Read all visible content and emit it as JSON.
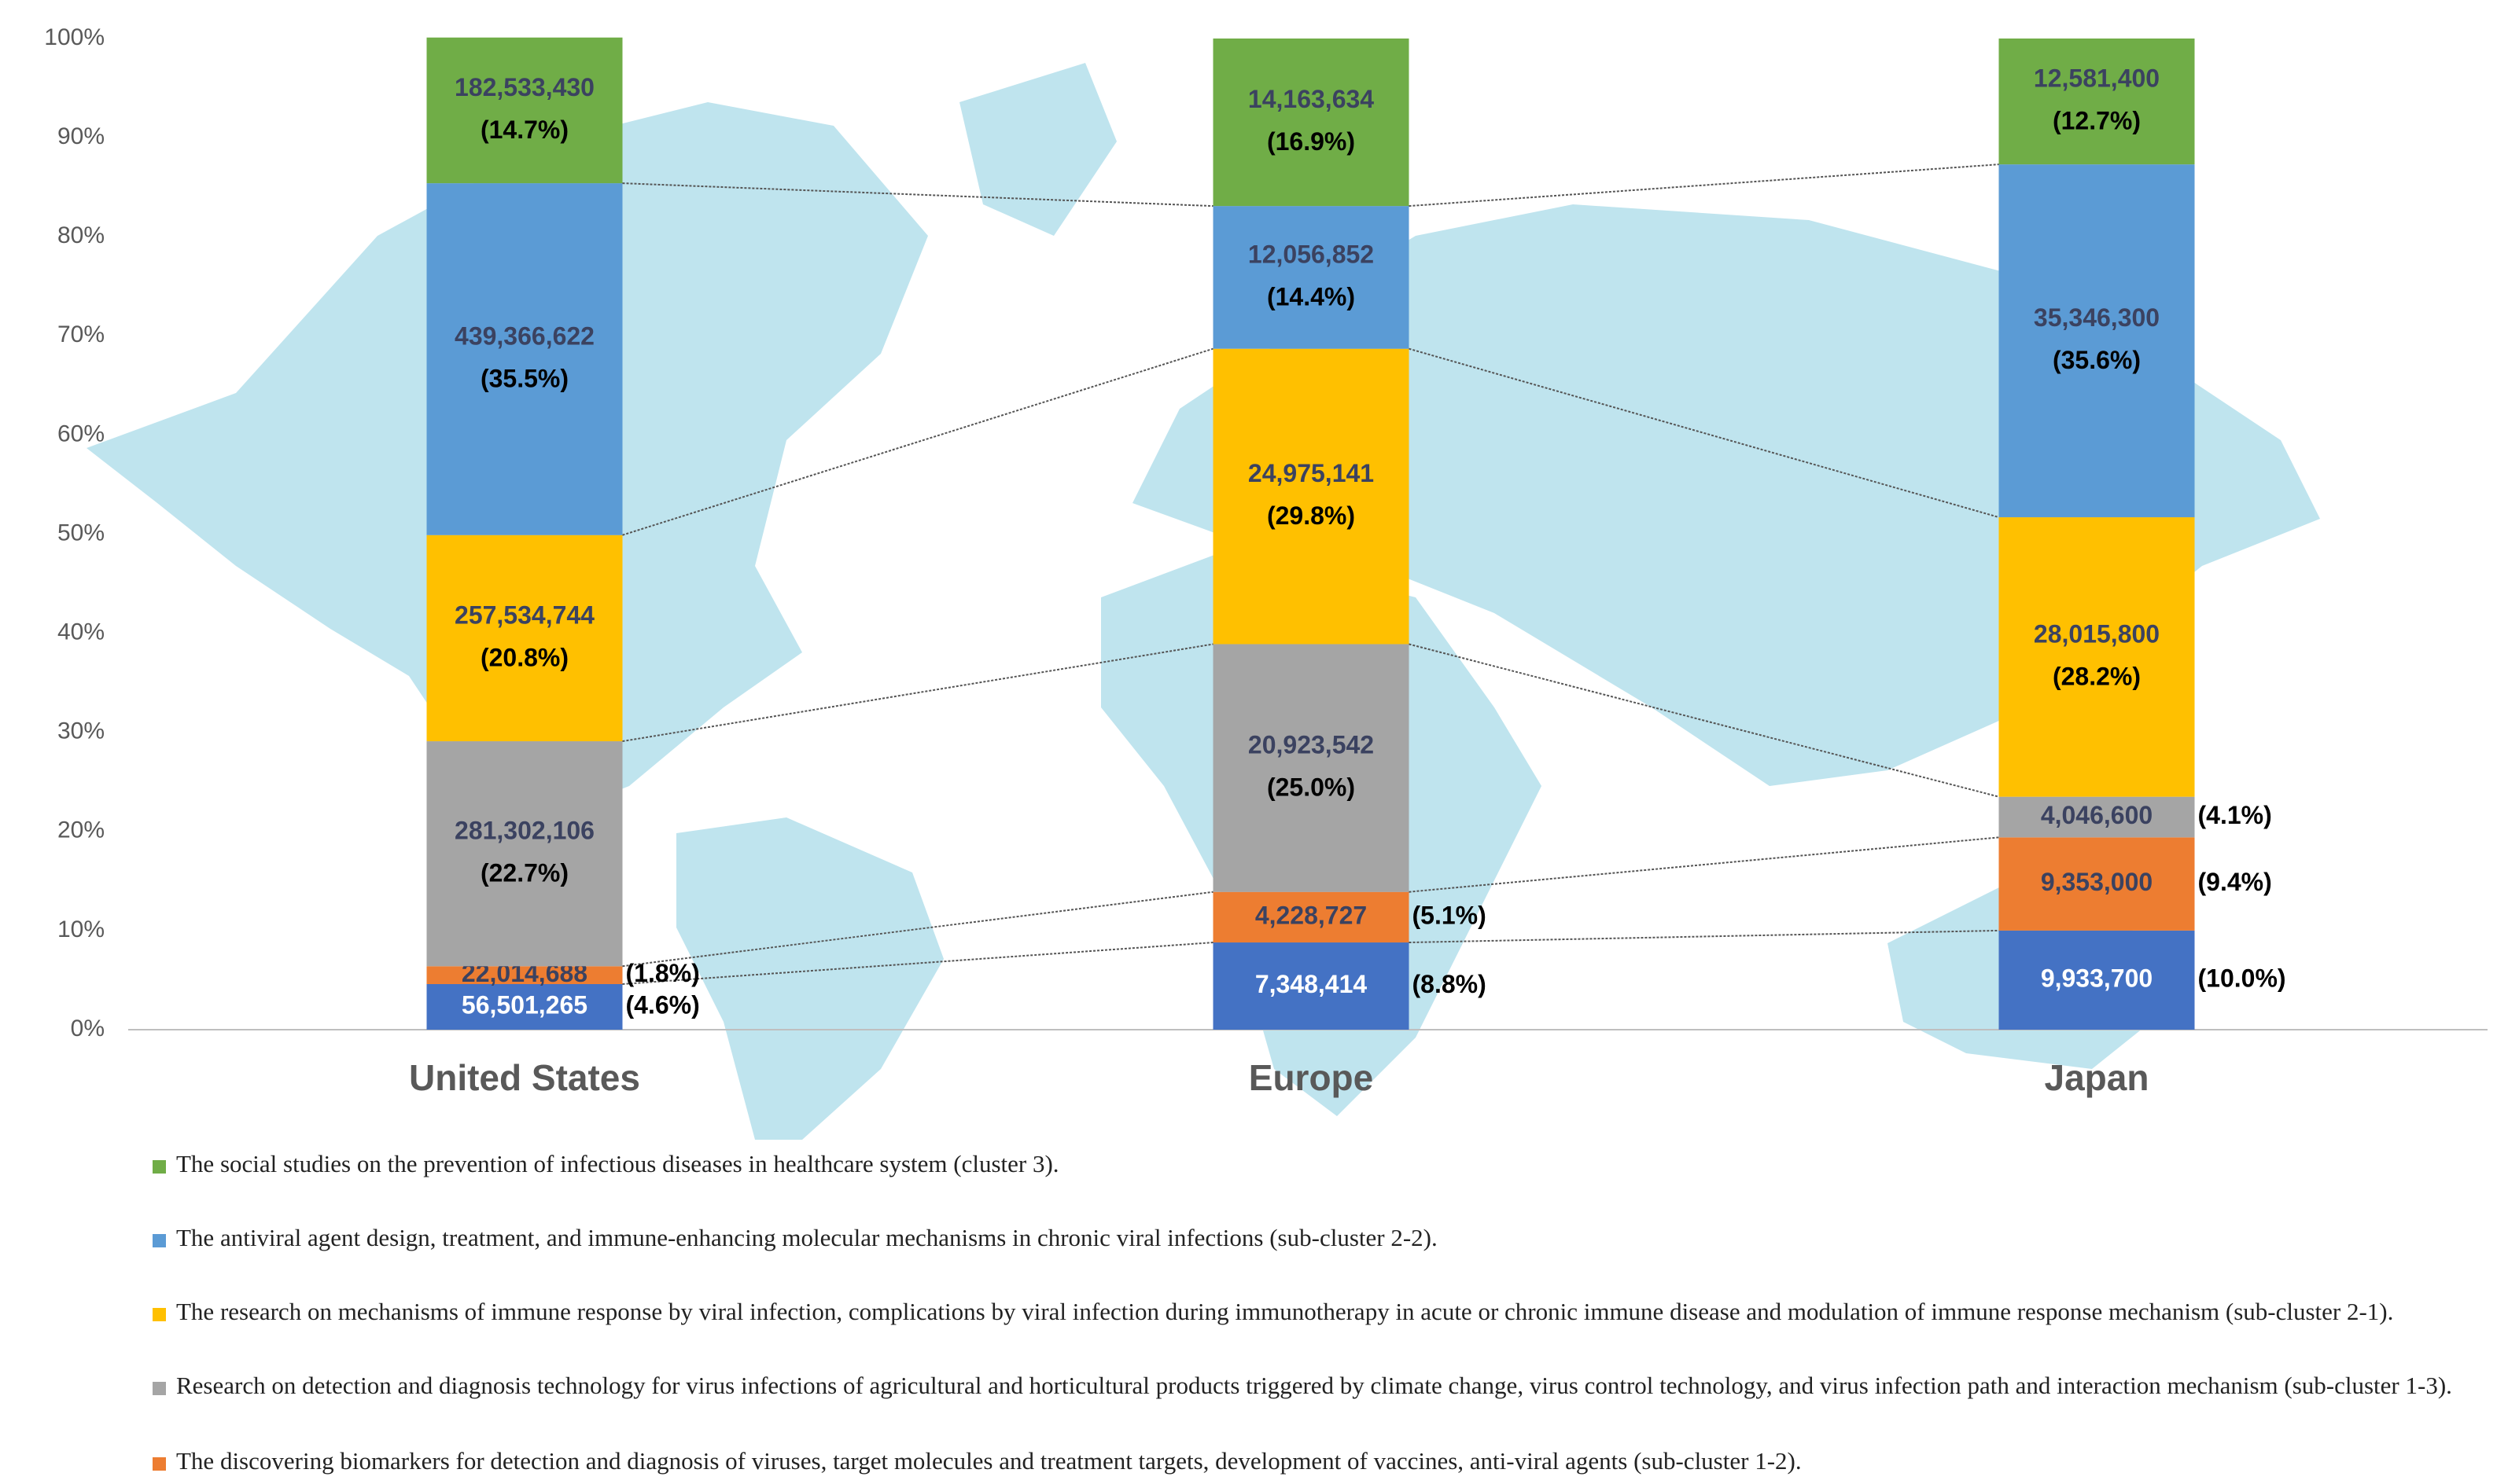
{
  "chart_data": {
    "type": "stacked_bar_100",
    "categories": [
      "United States",
      "Europe",
      "Japan"
    ],
    "ylim": [
      0,
      100
    ],
    "yticks": [
      {
        "value": 0,
        "label": "0%"
      },
      {
        "value": 10,
        "label": "10%"
      },
      {
        "value": 20,
        "label": "20%"
      },
      {
        "value": 30,
        "label": "30%"
      },
      {
        "value": 40,
        "label": "40%"
      },
      {
        "value": 50,
        "label": "50%"
      },
      {
        "value": 60,
        "label": "60%"
      },
      {
        "value": 70,
        "label": "70%"
      },
      {
        "value": 80,
        "label": "80%"
      },
      {
        "value": 90,
        "label": "90%"
      },
      {
        "value": 100,
        "label": "100%"
      }
    ],
    "grid": false,
    "series": [
      {
        "color": "#4472c4",
        "values": [
          4.6,
          8.8,
          10.0
        ],
        "value_labels": [
          "(4.6%)",
          "(8.8%)",
          "(10.0%)"
        ],
        "amounts": [
          "56,501,265",
          "7,348,414",
          "9,933,700"
        ]
      },
      {
        "name": "The discovering  biomarkers for detection and diagnosis  of viruses,  target molecules and treatment targets, development of vaccines, anti-viral  agents (sub-cluster  1-2).",
        "color": "#ed7d31",
        "values": [
          1.8,
          5.1,
          9.4
        ],
        "value_labels": [
          "(1.8%)",
          "(5.1%)",
          "(9.4%)"
        ],
        "amounts": [
          "22,014,688",
          "4,228,727",
          "9,353,000"
        ]
      },
      {
        "name": "Research on detection and diagnosis technology for virus infections of agricultural and horticultural  products triggered by climate  change, virus control technology, and virus infection path and interaction  mechanism (sub-cluster  1-3).",
        "color": "#a5a5a5",
        "values": [
          22.7,
          25.0,
          4.1
        ],
        "value_labels": [
          "(22.7%)",
          "(25.0%)",
          "(4.1%)"
        ],
        "amounts": [
          "281,302,106",
          "20,923,542",
          "4,046,600"
        ]
      },
      {
        "name": "The research on mechanisms of immune response by viral infection,  complications  by viral infection  during immunotherapy in acute or chronic immune disease and modulation of immune response mechanism (sub-cluster  2-1).",
        "color": "#ffc000",
        "values": [
          20.8,
          29.8,
          28.2
        ],
        "value_labels": [
          "(20.8%)",
          "(29.8%)",
          "(28.2%)"
        ],
        "amounts": [
          "257,534,744",
          "24,975,141",
          "28,015,800"
        ]
      },
      {
        "name": "The antiviral agent design,  treatment, and immune-enhancing  molecular mechanisms  in chronic viral infections  (sub-cluster 2-2).",
        "color": "#5b9bd5",
        "values": [
          35.5,
          14.4,
          35.6
        ],
        "value_labels": [
          "(35.5%)",
          "(14.4%)",
          "(35.6%)"
        ],
        "amounts": [
          "439,366,622",
          "12,056,852",
          "35,346,300"
        ]
      },
      {
        "name": "The social  studies  on the prevention of infectious  diseases  in healthcare system (cluster 3).",
        "color": "#70ad47",
        "values": [
          14.7,
          16.9,
          12.7
        ],
        "value_labels": [
          "(14.7%)",
          "(16.9%)",
          "(12.7%)"
        ],
        "amounts": [
          "182,533,430",
          "14,163,634",
          "12,581,400"
        ]
      }
    ]
  }
}
